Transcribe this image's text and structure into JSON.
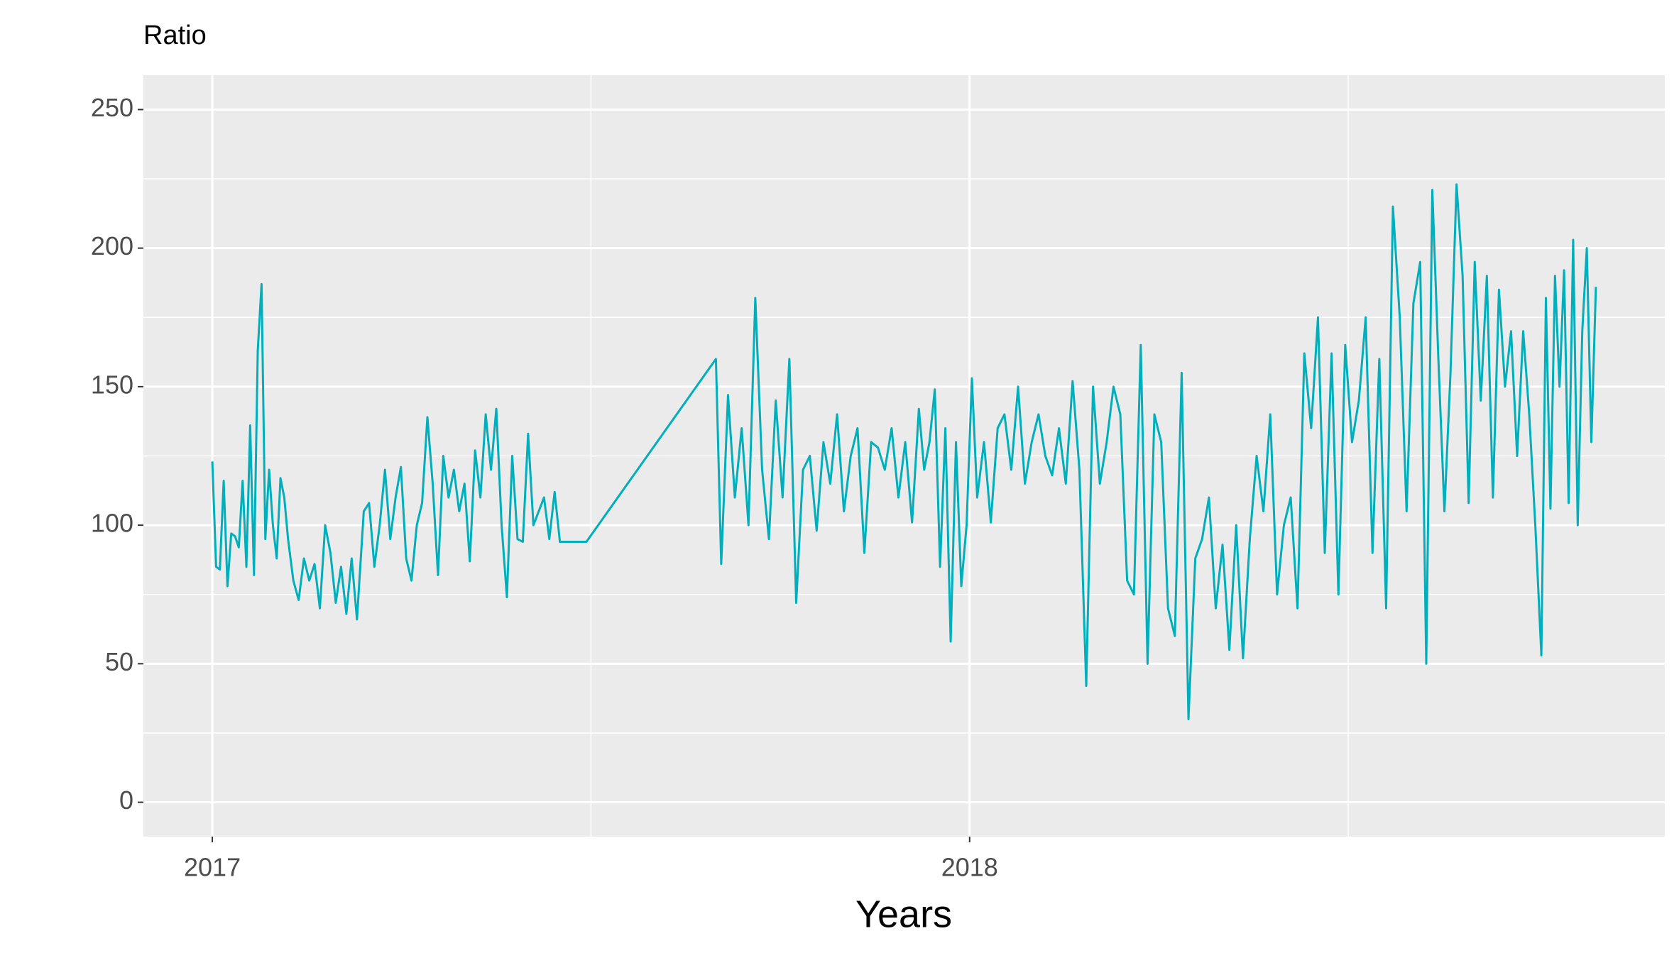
{
  "chart_data": {
    "type": "line",
    "y_label": "Ratio",
    "x_label": "Years",
    "color": "#00afbb",
    "grid": true,
    "xlim": [
      2016.909,
      2018.918
    ],
    "xticks": [
      2017,
      2018
    ],
    "ylim": [
      -12.4,
      262.4
    ],
    "yticks": [
      0,
      50,
      100,
      150,
      200,
      250
    ],
    "x": [
      2017.0,
      2017.005,
      2017.01,
      2017.015,
      2017.02,
      2017.025,
      2017.03,
      2017.035,
      2017.04,
      2017.045,
      2017.05,
      2017.055,
      2017.06,
      2017.065,
      2017.07,
      2017.075,
      2017.08,
      2017.085,
      2017.09,
      2017.095,
      2017.1,
      2017.107,
      2017.114,
      2017.121,
      2017.128,
      2017.135,
      2017.142,
      2017.149,
      2017.156,
      2017.163,
      2017.17,
      2017.177,
      2017.184,
      2017.191,
      2017.2,
      2017.207,
      2017.214,
      2017.221,
      2017.228,
      2017.235,
      2017.242,
      2017.249,
      2017.256,
      2017.263,
      2017.27,
      2017.277,
      2017.284,
      2017.291,
      2017.298,
      2017.305,
      2017.312,
      2017.319,
      2017.326,
      2017.333,
      2017.34,
      2017.347,
      2017.354,
      2017.361,
      2017.368,
      2017.375,
      2017.382,
      2017.389,
      2017.396,
      2017.403,
      2017.41,
      2017.417,
      2017.424,
      2017.431,
      2017.438,
      2017.445,
      2017.452,
      2017.459,
      2017.494,
      2017.665,
      2017.672,
      2017.681,
      2017.69,
      2017.699,
      2017.708,
      2017.717,
      2017.726,
      2017.735,
      2017.744,
      2017.753,
      2017.762,
      2017.771,
      2017.78,
      2017.789,
      2017.798,
      2017.807,
      2017.816,
      2017.825,
      2017.834,
      2017.843,
      2017.852,
      2017.861,
      2017.87,
      2017.879,
      2017.888,
      2017.897,
      2017.906,
      2017.915,
      2017.924,
      2017.933,
      2017.94,
      2017.947,
      2017.954,
      2017.961,
      2017.968,
      2017.975,
      2017.982,
      2017.989,
      2017.996,
      2018.003,
      2018.01,
      2018.019,
      2018.028,
      2018.037,
      2018.046,
      2018.055,
      2018.064,
      2018.073,
      2018.082,
      2018.091,
      2018.1,
      2018.109,
      2018.118,
      2018.127,
      2018.136,
      2018.145,
      2018.154,
      2018.163,
      2018.172,
      2018.181,
      2018.19,
      2018.199,
      2018.208,
      2018.217,
      2018.226,
      2018.235,
      2018.244,
      2018.253,
      2018.262,
      2018.271,
      2018.28,
      2018.289,
      2018.298,
      2018.307,
      2018.316,
      2018.325,
      2018.334,
      2018.343,
      2018.352,
      2018.361,
      2018.37,
      2018.379,
      2018.388,
      2018.397,
      2018.406,
      2018.415,
      2018.424,
      2018.433,
      2018.442,
      2018.451,
      2018.46,
      2018.469,
      2018.478,
      2018.487,
      2018.496,
      2018.505,
      2018.514,
      2018.523,
      2018.532,
      2018.541,
      2018.55,
      2018.559,
      2018.568,
      2018.577,
      2018.586,
      2018.595,
      2018.603,
      2018.611,
      2018.619,
      2018.627,
      2018.635,
      2018.643,
      2018.651,
      2018.659,
      2018.667,
      2018.675,
      2018.683,
      2018.691,
      2018.699,
      2018.707,
      2018.715,
      2018.723,
      2018.731,
      2018.739,
      2018.747,
      2018.755,
      2018.761,
      2018.767,
      2018.773,
      2018.779,
      2018.785,
      2018.791,
      2018.797,
      2018.803,
      2018.809,
      2018.815,
      2018.821,
      2018.827
    ],
    "values": [
      123,
      85,
      84,
      116,
      78,
      97,
      96,
      92,
      116,
      85,
      136,
      82,
      163,
      187,
      95,
      120,
      100,
      88,
      117,
      110,
      95,
      80,
      73,
      88,
      80,
      86,
      70,
      100,
      90,
      72,
      85,
      68,
      88,
      66,
      105,
      108,
      85,
      100,
      120,
      95,
      110,
      121,
      88,
      80,
      100,
      108,
      139,
      115,
      82,
      125,
      110,
      120,
      105,
      115,
      87,
      127,
      110,
      140,
      120,
      142,
      100,
      74,
      125,
      95,
      94,
      133,
      100,
      105,
      110,
      95,
      112,
      94,
      94,
      160,
      86,
      147,
      110,
      135,
      100,
      182,
      120,
      95,
      145,
      110,
      160,
      72,
      120,
      125,
      98,
      130,
      115,
      140,
      105,
      125,
      135,
      90,
      130,
      128,
      120,
      135,
      110,
      130,
      101,
      142,
      120,
      130,
      149,
      85,
      135,
      58,
      130,
      78,
      100,
      153,
      110,
      130,
      101,
      135,
      140,
      120,
      150,
      115,
      130,
      140,
      125,
      118,
      135,
      115,
      152,
      120,
      42,
      150,
      115,
      130,
      150,
      140,
      80,
      75,
      165,
      50,
      140,
      130,
      70,
      60,
      155,
      30,
      88,
      95,
      110,
      70,
      93,
      55,
      100,
      52,
      95,
      125,
      105,
      140,
      75,
      100,
      110,
      70,
      162,
      135,
      175,
      90,
      162,
      75,
      165,
      130,
      145,
      175,
      90,
      160,
      70,
      215,
      175,
      105,
      180,
      195,
      50,
      221,
      160,
      105,
      155,
      223,
      190,
      108,
      195,
      145,
      190,
      110,
      185,
      150,
      170,
      125,
      170,
      140,
      100,
      53,
      182,
      106,
      190,
      150,
      192,
      108,
      203,
      100,
      170,
      200,
      130,
      186
    ]
  }
}
